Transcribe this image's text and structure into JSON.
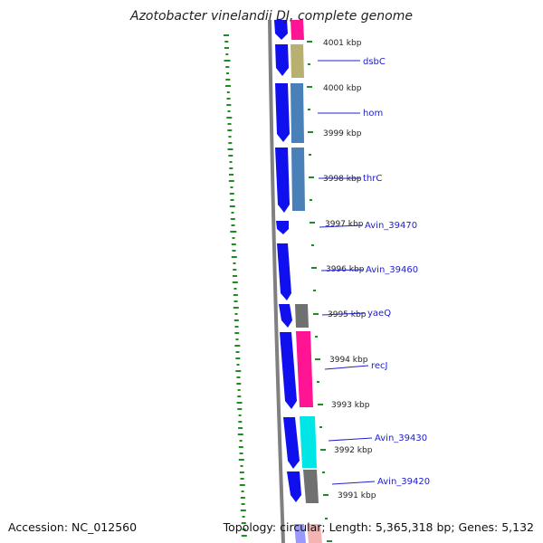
{
  "title": "Azotobacter vinelandii DJ, complete genome",
  "footer": {
    "accession": "Accession: NC_012560",
    "summary": "Topology: circular; Length: 5,365,318 bp; Genes: 5,132"
  },
  "colors": {
    "backbone": "#808080",
    "gene_arrow": "#1010ee",
    "tick": "#228b22",
    "gene_label": "#2020cc",
    "cog_colors": [
      "#ff1493",
      "#b8b070",
      "#4a80b8",
      "#707070",
      "#00e5e5",
      "#ff1493",
      "#f08080"
    ]
  },
  "scale_ticks": [
    "4001 kbp",
    "4000 kbp",
    "3999 kbp",
    "3998 kbp",
    "3997 kbp",
    "3996 kbp",
    "3995 kbp",
    "3994 kbp",
    "3993 kbp",
    "3992 kbp",
    "3991 kbp"
  ],
  "genes": [
    "dsbC",
    "hom",
    "thrC",
    "Avin_39470",
    "Avin_39460",
    "yaeQ",
    "recJ",
    "Avin_39430",
    "Avin_39420"
  ]
}
